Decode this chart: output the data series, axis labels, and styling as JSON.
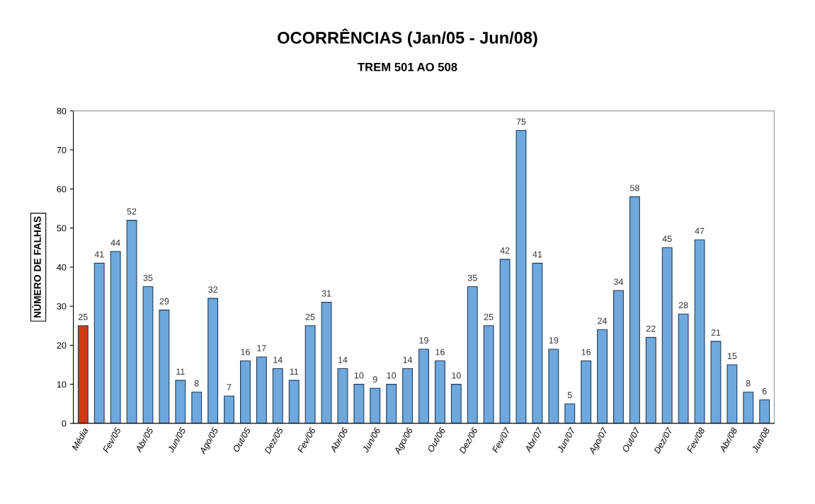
{
  "chart_data": {
    "type": "bar",
    "title": "OCORRÊNCIAS (Jan/05 - Jun/08)",
    "subtitle": "TREM 501 AO 508",
    "ylabel": "NÚMERO DE FALHAS",
    "categories": [
      "Média",
      null,
      "Fev/05",
      null,
      "Abr/05",
      null,
      "Jun/05",
      null,
      "Ago/05",
      null,
      "Out/05",
      null,
      "Dez/05",
      null,
      "Fev/06",
      null,
      "Abr/06",
      null,
      "Jun/06",
      null,
      "Ago/06",
      null,
      "Out/06",
      null,
      "Dez/06",
      null,
      "Fev/07",
      null,
      "Abr/07",
      null,
      "Jun/07",
      null,
      "Ago/07",
      null,
      "Out/07",
      null,
      "Dez/07",
      null,
      "Fev/08",
      null,
      "Abr/08",
      null,
      "Jun/08"
    ],
    "values": [
      25,
      41,
      44,
      52,
      35,
      29,
      11,
      8,
      32,
      7,
      16,
      17,
      14,
      11,
      25,
      31,
      14,
      10,
      9,
      10,
      14,
      19,
      16,
      10,
      35,
      25,
      42,
      75,
      41,
      19,
      5,
      16,
      24,
      34,
      58,
      22,
      45,
      28,
      47,
      21,
      15,
      8,
      6
    ],
    "colors": [
      "#d03a10",
      "#6fa8dc",
      "#6fa8dc",
      "#6fa8dc",
      "#6fa8dc",
      "#6fa8dc",
      "#6fa8dc",
      "#6fa8dc",
      "#6fa8dc",
      "#6fa8dc",
      "#6fa8dc",
      "#6fa8dc",
      "#6fa8dc",
      "#6fa8dc",
      "#6fa8dc",
      "#6fa8dc",
      "#6fa8dc",
      "#6fa8dc",
      "#6fa8dc",
      "#6fa8dc",
      "#6fa8dc",
      "#6fa8dc",
      "#6fa8dc",
      "#6fa8dc",
      "#6fa8dc",
      "#6fa8dc",
      "#6fa8dc",
      "#6fa8dc",
      "#6fa8dc",
      "#6fa8dc",
      "#6fa8dc",
      "#6fa8dc",
      "#6fa8dc",
      "#6fa8dc",
      "#6fa8dc",
      "#6fa8dc",
      "#6fa8dc",
      "#6fa8dc",
      "#6fa8dc",
      "#6fa8dc",
      "#6fa8dc",
      "#6fa8dc",
      "#6fa8dc"
    ],
    "ylim": [
      0,
      80
    ],
    "yticks": [
      0,
      10,
      20,
      30,
      40,
      50,
      60,
      70,
      80
    ],
    "data_labels": true,
    "grid": false,
    "legend": false
  }
}
